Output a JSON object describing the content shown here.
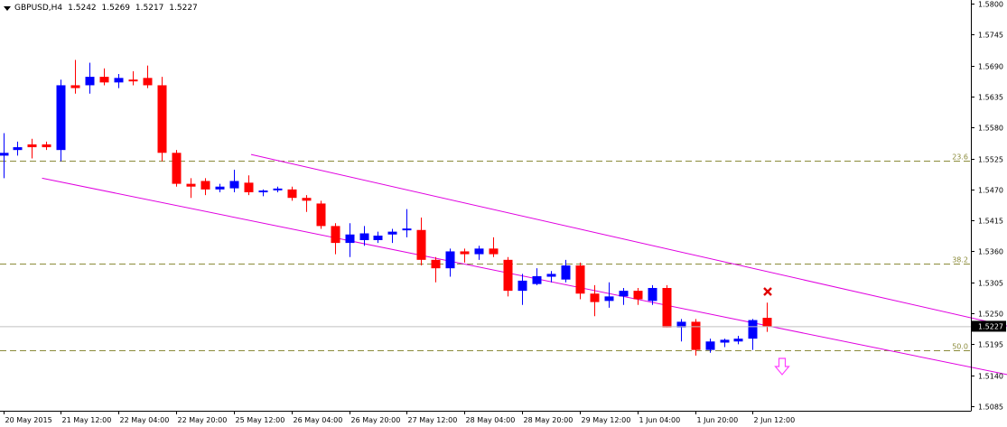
{
  "header": {
    "symbol": "GBPUSD,H4",
    "open": "1.5242",
    "high": "1.5269",
    "low": "1.5217",
    "close": "1.5227"
  },
  "price_axis": {
    "ticks": [
      "1.5800",
      "1.5745",
      "1.5690",
      "1.5635",
      "1.5580",
      "1.5525",
      "1.5470",
      "1.5415",
      "1.5360",
      "1.5305",
      "1.5250",
      "1.5195",
      "1.5140",
      "1.5085"
    ],
    "current_price": "1.5227"
  },
  "time_axis": {
    "labels": [
      "20 May 2015",
      "21 May 12:00",
      "22 May 04:00",
      "22 May 20:00",
      "25 May 12:00",
      "26 May 04:00",
      "26 May 20:00",
      "27 May 12:00",
      "28 May 04:00",
      "28 May 20:00",
      "29 May 12:00",
      "1 Jun 04:00",
      "1 Jun 20:00",
      "2 Jun 12:00"
    ]
  },
  "fibonacci": {
    "levels": [
      {
        "label": "23.6",
        "price": 1.5521
      },
      {
        "label": "38.2",
        "price": 1.5338
      },
      {
        "label": "50.0",
        "price": 1.5185
      }
    ],
    "color": "#8b8b3a"
  },
  "colors": {
    "bull": "#0000ff",
    "bear": "#ff0000",
    "channel": "#e000e0",
    "axis": "#000000",
    "price_line": "#c0c0c0",
    "signal_cross": "#e00000",
    "signal_arrow": "#ff40ff"
  },
  "markers": {
    "cross_icon": "x-mark-icon",
    "arrow_icon": "hollow-down-arrow-icon"
  },
  "chart_data": {
    "type": "candlestick",
    "price_range": [
      1.5085,
      1.58
    ],
    "candles": [
      {
        "o": 1.553,
        "h": 1.557,
        "l": 1.549,
        "c": 1.5535
      },
      {
        "o": 1.554,
        "h": 1.5555,
        "l": 1.553,
        "c": 1.5545
      },
      {
        "o": 1.555,
        "h": 1.556,
        "l": 1.5525,
        "c": 1.5545
      },
      {
        "o": 1.555,
        "h": 1.5555,
        "l": 1.554,
        "c": 1.5545
      },
      {
        "o": 1.554,
        "h": 1.5665,
        "l": 1.552,
        "c": 1.5655
      },
      {
        "o": 1.5655,
        "h": 1.57,
        "l": 1.564,
        "c": 1.565
      },
      {
        "o": 1.5655,
        "h": 1.5695,
        "l": 1.564,
        "c": 1.567
      },
      {
        "o": 1.567,
        "h": 1.5685,
        "l": 1.5655,
        "c": 1.566
      },
      {
        "o": 1.566,
        "h": 1.5675,
        "l": 1.565,
        "c": 1.5668
      },
      {
        "o": 1.5665,
        "h": 1.568,
        "l": 1.5655,
        "c": 1.5662
      },
      {
        "o": 1.5668,
        "h": 1.569,
        "l": 1.565,
        "c": 1.5655
      },
      {
        "o": 1.5655,
        "h": 1.567,
        "l": 1.552,
        "c": 1.5535
      },
      {
        "o": 1.5535,
        "h": 1.554,
        "l": 1.5475,
        "c": 1.548
      },
      {
        "o": 1.548,
        "h": 1.549,
        "l": 1.5455,
        "c": 1.5475
      },
      {
        "o": 1.5485,
        "h": 1.549,
        "l": 1.546,
        "c": 1.547
      },
      {
        "o": 1.547,
        "h": 1.548,
        "l": 1.5465,
        "c": 1.5475
      },
      {
        "o": 1.5472,
        "h": 1.5505,
        "l": 1.5465,
        "c": 1.5485
      },
      {
        "o": 1.5482,
        "h": 1.5495,
        "l": 1.546,
        "c": 1.5465
      },
      {
        "o": 1.5465,
        "h": 1.547,
        "l": 1.5458,
        "c": 1.5468
      },
      {
        "o": 1.547,
        "h": 1.5475,
        "l": 1.5465,
        "c": 1.547
      },
      {
        "o": 1.547,
        "h": 1.5475,
        "l": 1.545,
        "c": 1.5455
      },
      {
        "o": 1.5455,
        "h": 1.546,
        "l": 1.543,
        "c": 1.545
      },
      {
        "o": 1.5445,
        "h": 1.545,
        "l": 1.54,
        "c": 1.5405
      },
      {
        "o": 1.5405,
        "h": 1.541,
        "l": 1.5355,
        "c": 1.5375
      },
      {
        "o": 1.5375,
        "h": 1.541,
        "l": 1.535,
        "c": 1.539
      },
      {
        "o": 1.538,
        "h": 1.5405,
        "l": 1.537,
        "c": 1.5392
      },
      {
        "o": 1.538,
        "h": 1.5395,
        "l": 1.5375,
        "c": 1.5388
      },
      {
        "o": 1.539,
        "h": 1.54,
        "l": 1.5375,
        "c": 1.5395
      },
      {
        "o": 1.5398,
        "h": 1.5435,
        "l": 1.5385,
        "c": 1.54
      },
      {
        "o": 1.5398,
        "h": 1.542,
        "l": 1.5335,
        "c": 1.5345
      },
      {
        "o": 1.5345,
        "h": 1.535,
        "l": 1.5305,
        "c": 1.533
      },
      {
        "o": 1.533,
        "h": 1.5365,
        "l": 1.5315,
        "c": 1.536
      },
      {
        "o": 1.536,
        "h": 1.5365,
        "l": 1.534,
        "c": 1.5355
      },
      {
        "o": 1.5355,
        "h": 1.537,
        "l": 1.5345,
        "c": 1.5365
      },
      {
        "o": 1.5365,
        "h": 1.5385,
        "l": 1.535,
        "c": 1.5355
      },
      {
        "o": 1.5345,
        "h": 1.535,
        "l": 1.528,
        "c": 1.529
      },
      {
        "o": 1.529,
        "h": 1.532,
        "l": 1.5265,
        "c": 1.5308
      },
      {
        "o": 1.5302,
        "h": 1.533,
        "l": 1.53,
        "c": 1.5316
      },
      {
        "o": 1.5315,
        "h": 1.5325,
        "l": 1.5305,
        "c": 1.532
      },
      {
        "o": 1.531,
        "h": 1.5345,
        "l": 1.5305,
        "c": 1.5335
      },
      {
        "o": 1.5335,
        "h": 1.534,
        "l": 1.5275,
        "c": 1.5285
      },
      {
        "o": 1.5285,
        "h": 1.53,
        "l": 1.5245,
        "c": 1.527
      },
      {
        "o": 1.5272,
        "h": 1.5305,
        "l": 1.526,
        "c": 1.528
      },
      {
        "o": 1.528,
        "h": 1.5295,
        "l": 1.5265,
        "c": 1.529
      },
      {
        "o": 1.529,
        "h": 1.5295,
        "l": 1.5265,
        "c": 1.5275
      },
      {
        "o": 1.5272,
        "h": 1.53,
        "l": 1.5265,
        "c": 1.5295
      },
      {
        "o": 1.5295,
        "h": 1.53,
        "l": 1.5225,
        "c": 1.5225
      },
      {
        "o": 1.5225,
        "h": 1.524,
        "l": 1.52,
        "c": 1.5235
      },
      {
        "o": 1.5235,
        "h": 1.524,
        "l": 1.5175,
        "c": 1.5185
      },
      {
        "o": 1.5185,
        "h": 1.5205,
        "l": 1.518,
        "c": 1.52
      },
      {
        "o": 1.5198,
        "h": 1.5205,
        "l": 1.519,
        "c": 1.5203
      },
      {
        "o": 1.52,
        "h": 1.521,
        "l": 1.5195,
        "c": 1.5205
      },
      {
        "o": 1.5205,
        "h": 1.524,
        "l": 1.5185,
        "c": 1.5238
      },
      {
        "o": 1.5242,
        "h": 1.5269,
        "l": 1.5217,
        "c": 1.5227
      }
    ],
    "channel_upper": [
      {
        "i": 17.2,
        "p": 1.5532
      },
      {
        "i": 83.0,
        "p": 1.515
      }
    ],
    "channel_lower": [
      {
        "i": 2.7,
        "p": 1.549
      },
      {
        "i": 79.5,
        "p": 1.509
      }
    ]
  }
}
